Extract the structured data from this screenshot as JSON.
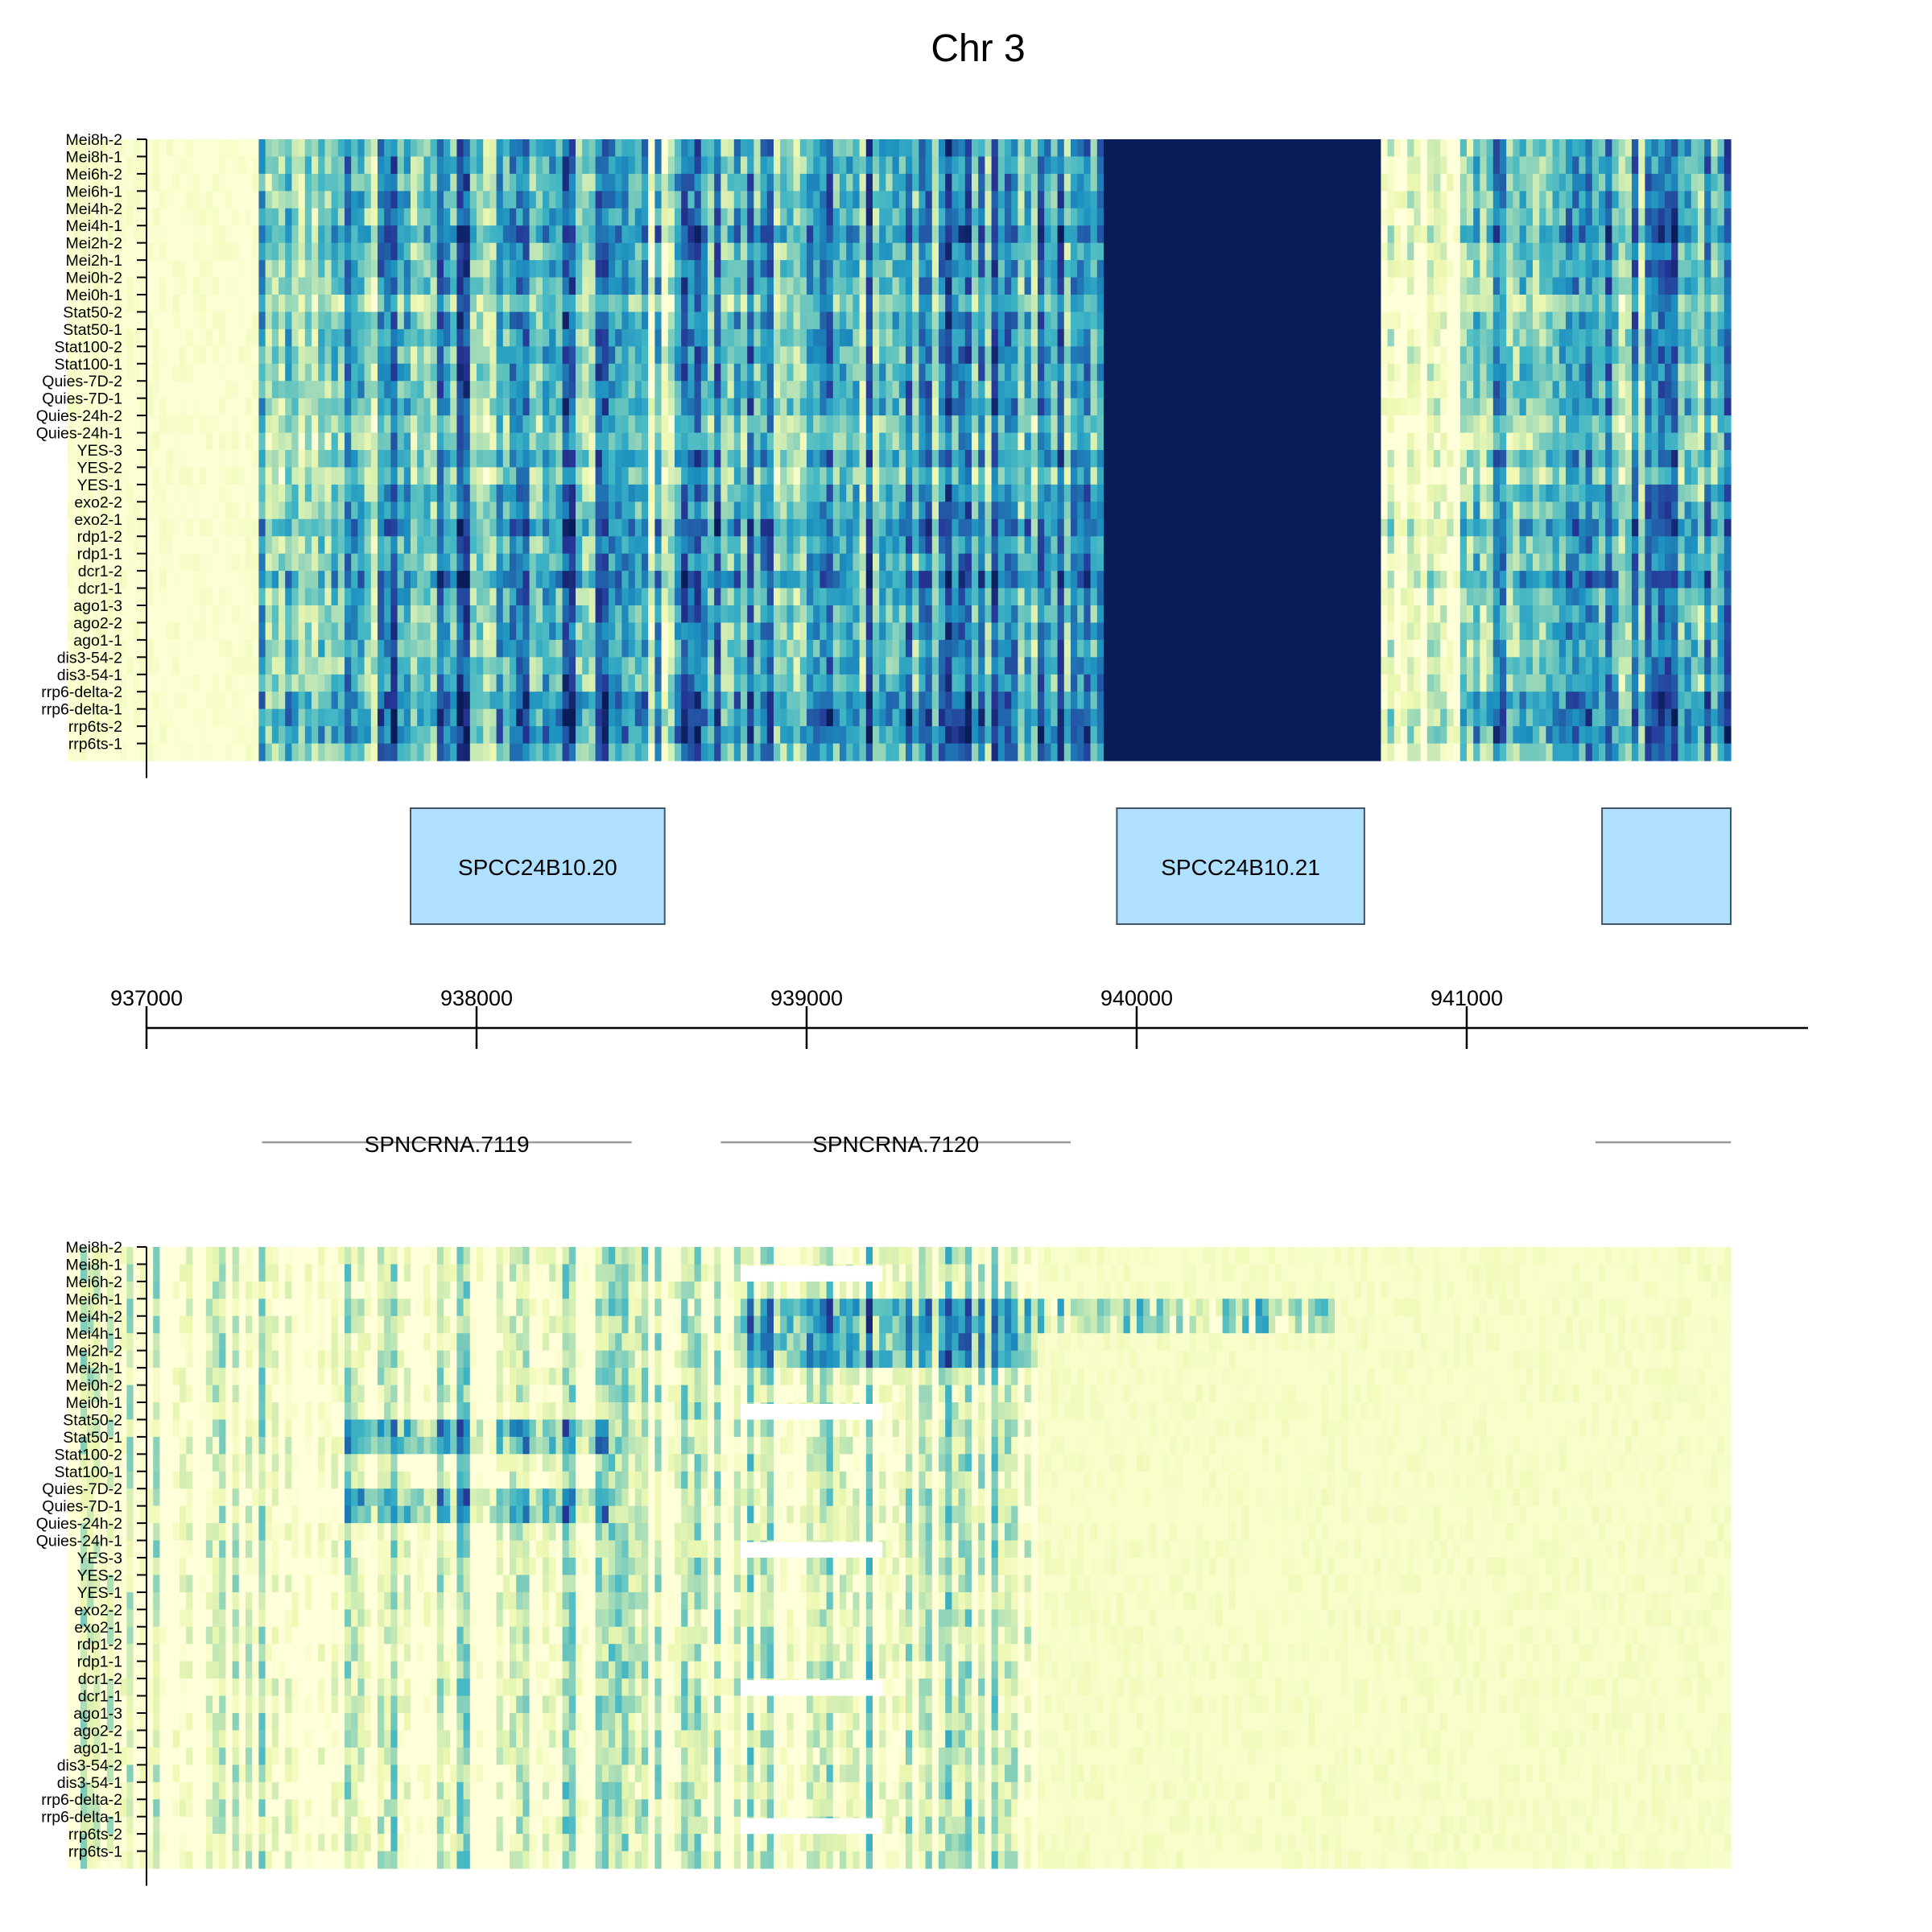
{
  "chart_data": {
    "type": "heatmap",
    "title": "Chr 3",
    "genome_range": [
      936760,
      941800
    ],
    "rows": [
      "Mei8h-2",
      "Mei8h-1",
      "Mei6h-2",
      "Mei6h-1",
      "Mei4h-2",
      "Mei4h-1",
      "Mei2h-2",
      "Mei2h-1",
      "Mei0h-2",
      "Mei0h-1",
      "Stat50-2",
      "Stat50-1",
      "Stat100-2",
      "Stat100-1",
      "Quies-7D-2",
      "Quies-7D-1",
      "Quies-24h-2",
      "Quies-24h-1",
      "YES-3",
      "YES-2",
      "YES-1",
      "exo2-2",
      "exo2-1",
      "rdp1-2",
      "rdp1-1",
      "dcr1-2",
      "dcr1-1",
      "ago1-3",
      "ago2-2",
      "ago1-1",
      "dis3-54-2",
      "dis3-54-1",
      "rrp6-delta-2",
      "rrp6-delta-1",
      "rrp6ts-2",
      "rrp6ts-1"
    ],
    "x_ticks": [
      937000,
      938000,
      939000,
      940000,
      941000
    ],
    "x_tick_labels": [
      "937000",
      "938000",
      "939000",
      "940000",
      "941000"
    ],
    "genes": [
      {
        "name": "SPCC24B10.20",
        "start": 937800,
        "end": 938570
      },
      {
        "name": "SPCC24B10.21",
        "start": 939940,
        "end": 940690
      },
      {
        "name": "",
        "start": 941410,
        "end": 941800
      }
    ],
    "ncrnas": [
      {
        "name": "SPNCRNA.7119",
        "start": 937350,
        "end": 938470
      },
      {
        "name": "SPNCRNA.7120",
        "start": 938740,
        "end": 939800
      },
      {
        "name": "",
        "start": 941390,
        "end": 941800
      }
    ],
    "top_heatmap": {
      "strand": "forward",
      "expression_profile": [
        {
          "start": 936760,
          "end": 937330,
          "level": 0.02
        },
        {
          "start": 937330,
          "end": 937400,
          "level": 0.3
        },
        {
          "start": 937400,
          "end": 937700,
          "level": 0.45
        },
        {
          "start": 937700,
          "end": 938000,
          "level": 0.55
        },
        {
          "start": 938000,
          "end": 938400,
          "level": 0.55
        },
        {
          "start": 938400,
          "end": 938600,
          "level": 0.35
        },
        {
          "start": 938600,
          "end": 939200,
          "level": 0.5
        },
        {
          "start": 939200,
          "end": 939900,
          "level": 0.55
        },
        {
          "start": 939900,
          "end": 940730,
          "level": 1.0
        },
        {
          "start": 940730,
          "end": 940970,
          "level": 0.1
        },
        {
          "start": 940970,
          "end": 941800,
          "level": 0.5
        }
      ],
      "high_rows": [
        "Mei4h-1",
        "exo2-1",
        "dcr1-2",
        "rrp6-delta-2",
        "rrp6-delta-1",
        "rrp6ts-2"
      ],
      "low_rows": [
        "Mei0h-1",
        "Quies-24h-2",
        "Quies-24h-1",
        "YES-2"
      ]
    },
    "bottom_heatmap": {
      "strand": "reverse",
      "expression_profile": [
        {
          "start": 936760,
          "end": 937600,
          "level": 0.05
        },
        {
          "start": 937600,
          "end": 938450,
          "level": 0.1
        },
        {
          "start": 938450,
          "end": 938780,
          "level": 0.05
        },
        {
          "start": 938780,
          "end": 939700,
          "level": 0.12
        },
        {
          "start": 939700,
          "end": 941800,
          "level": 0.04
        }
      ],
      "high_blocks": [
        {
          "start": 937600,
          "end": 938400,
          "rows": [
            "Stat50-2",
            "Stat50-1",
            "Quies-7D-2",
            "Quies-7D-1"
          ],
          "level": 0.45
        },
        {
          "start": 938800,
          "end": 939700,
          "rows": [
            "Mei6h-1",
            "Mei4h-2",
            "Mei4h-1",
            "Mei2h-2"
          ],
          "level": 0.5
        },
        {
          "start": 939700,
          "end": 940600,
          "rows": [
            "Mei6h-1",
            "Mei4h-2"
          ],
          "level": 0.22
        }
      ],
      "missing_blocks": [
        {
          "start": 938800,
          "end": 939230,
          "rows": [
            "Mei8h-1",
            "Mei0h-1",
            "Quies-24h-1",
            "dcr1-2",
            "rrp6-delta-1"
          ]
        }
      ]
    },
    "colormap": [
      "#ffffd9",
      "#edf8b1",
      "#c7e9b4",
      "#7fcdbb",
      "#41b6c4",
      "#1d91c0",
      "#225ea8",
      "#253494",
      "#081d58"
    ]
  }
}
